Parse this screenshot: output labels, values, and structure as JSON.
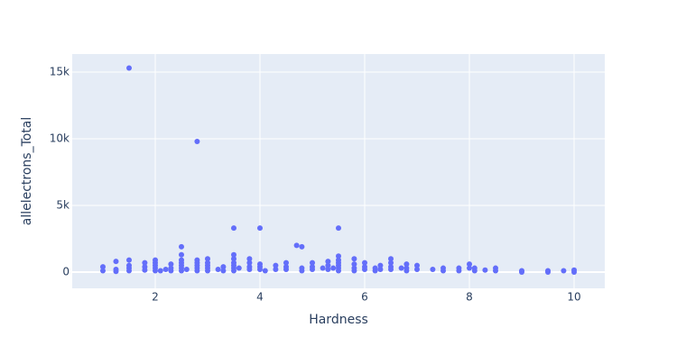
{
  "chart_data": {
    "type": "scatter",
    "x_label": "Hardness",
    "y_label": "allelectrons_Total",
    "color": "#636efa",
    "grid": true,
    "xlim": [
      0.414,
      10.586
    ],
    "xticks": [
      2,
      4,
      6,
      8,
      10
    ],
    "ylim": [
      -1216,
      16351
    ],
    "yticks": [
      0,
      {
        "value": 5000,
        "label": "5k"
      },
      {
        "value": 10000,
        "label": "10k"
      },
      {
        "value": 15000,
        "label": "15k"
      }
    ],
    "x": [
      1,
      1,
      1.25,
      1.25,
      1.25,
      1.5,
      1.5,
      1.5,
      1.5,
      1.5,
      1.8,
      1.8,
      1.8,
      2,
      2,
      2,
      2,
      2,
      2.1,
      2.2,
      2.3,
      2.3,
      2.3,
      2.5,
      2.5,
      2.5,
      2.5,
      2.5,
      2.5,
      2.5,
      2.6,
      2.8,
      2.8,
      2.8,
      2.8,
      2.8,
      2.8,
      3,
      3,
      3,
      3,
      3,
      3.2,
      3.3,
      3.3,
      3.5,
      3.5,
      3.5,
      3.5,
      3.5,
      3.5,
      3.5,
      3.6,
      3.8,
      3.8,
      3.8,
      3.8,
      4,
      4,
      4,
      4,
      4.1,
      4.3,
      4.3,
      4.5,
      4.5,
      4.5,
      4.7,
      4.8,
      4.8,
      4.8,
      5,
      5,
      5,
      5.2,
      5.3,
      5.3,
      5.3,
      5.4,
      5.5,
      5.5,
      5.5,
      5.5,
      5.5,
      5.5,
      5.5,
      5.8,
      5.8,
      5.8,
      5.8,
      6,
      6,
      6,
      6.2,
      6.2,
      6.3,
      6.3,
      6.5,
      6.5,
      6.5,
      6.5,
      6.7,
      6.8,
      6.8,
      6.8,
      7,
      7,
      7.3,
      7.5,
      7.5,
      7.8,
      7.8,
      8,
      8,
      8.1,
      8.1,
      8.3,
      8.5,
      8.5,
      9,
      9,
      9.5,
      9.5,
      9.8,
      10,
      10
    ],
    "values": [
      400,
      100,
      800,
      200,
      50,
      900,
      500,
      300,
      100,
      15300,
      700,
      400,
      150,
      900,
      700,
      500,
      300,
      100,
      100,
      200,
      600,
      300,
      100,
      1900,
      1300,
      900,
      700,
      500,
      300,
      100,
      200,
      900,
      700,
      500,
      300,
      100,
      9800,
      1000,
      700,
      500,
      300,
      100,
      200,
      400,
      100,
      1300,
      1000,
      700,
      500,
      300,
      100,
      3300,
      300,
      1000,
      700,
      400,
      200,
      600,
      400,
      200,
      3300,
      100,
      500,
      200,
      700,
      400,
      200,
      2000,
      1900,
      300,
      100,
      700,
      400,
      200,
      300,
      800,
      500,
      200,
      300,
      1200,
      900,
      700,
      500,
      300,
      100,
      3300,
      1000,
      600,
      300,
      100,
      700,
      400,
      200,
      300,
      100,
      500,
      200,
      1000,
      700,
      400,
      200,
      300,
      600,
      300,
      100,
      500,
      200,
      200,
      300,
      100,
      300,
      100,
      600,
      300,
      300,
      100,
      150,
      300,
      100,
      100,
      0,
      100,
      0,
      100,
      150,
      0
    ]
  }
}
